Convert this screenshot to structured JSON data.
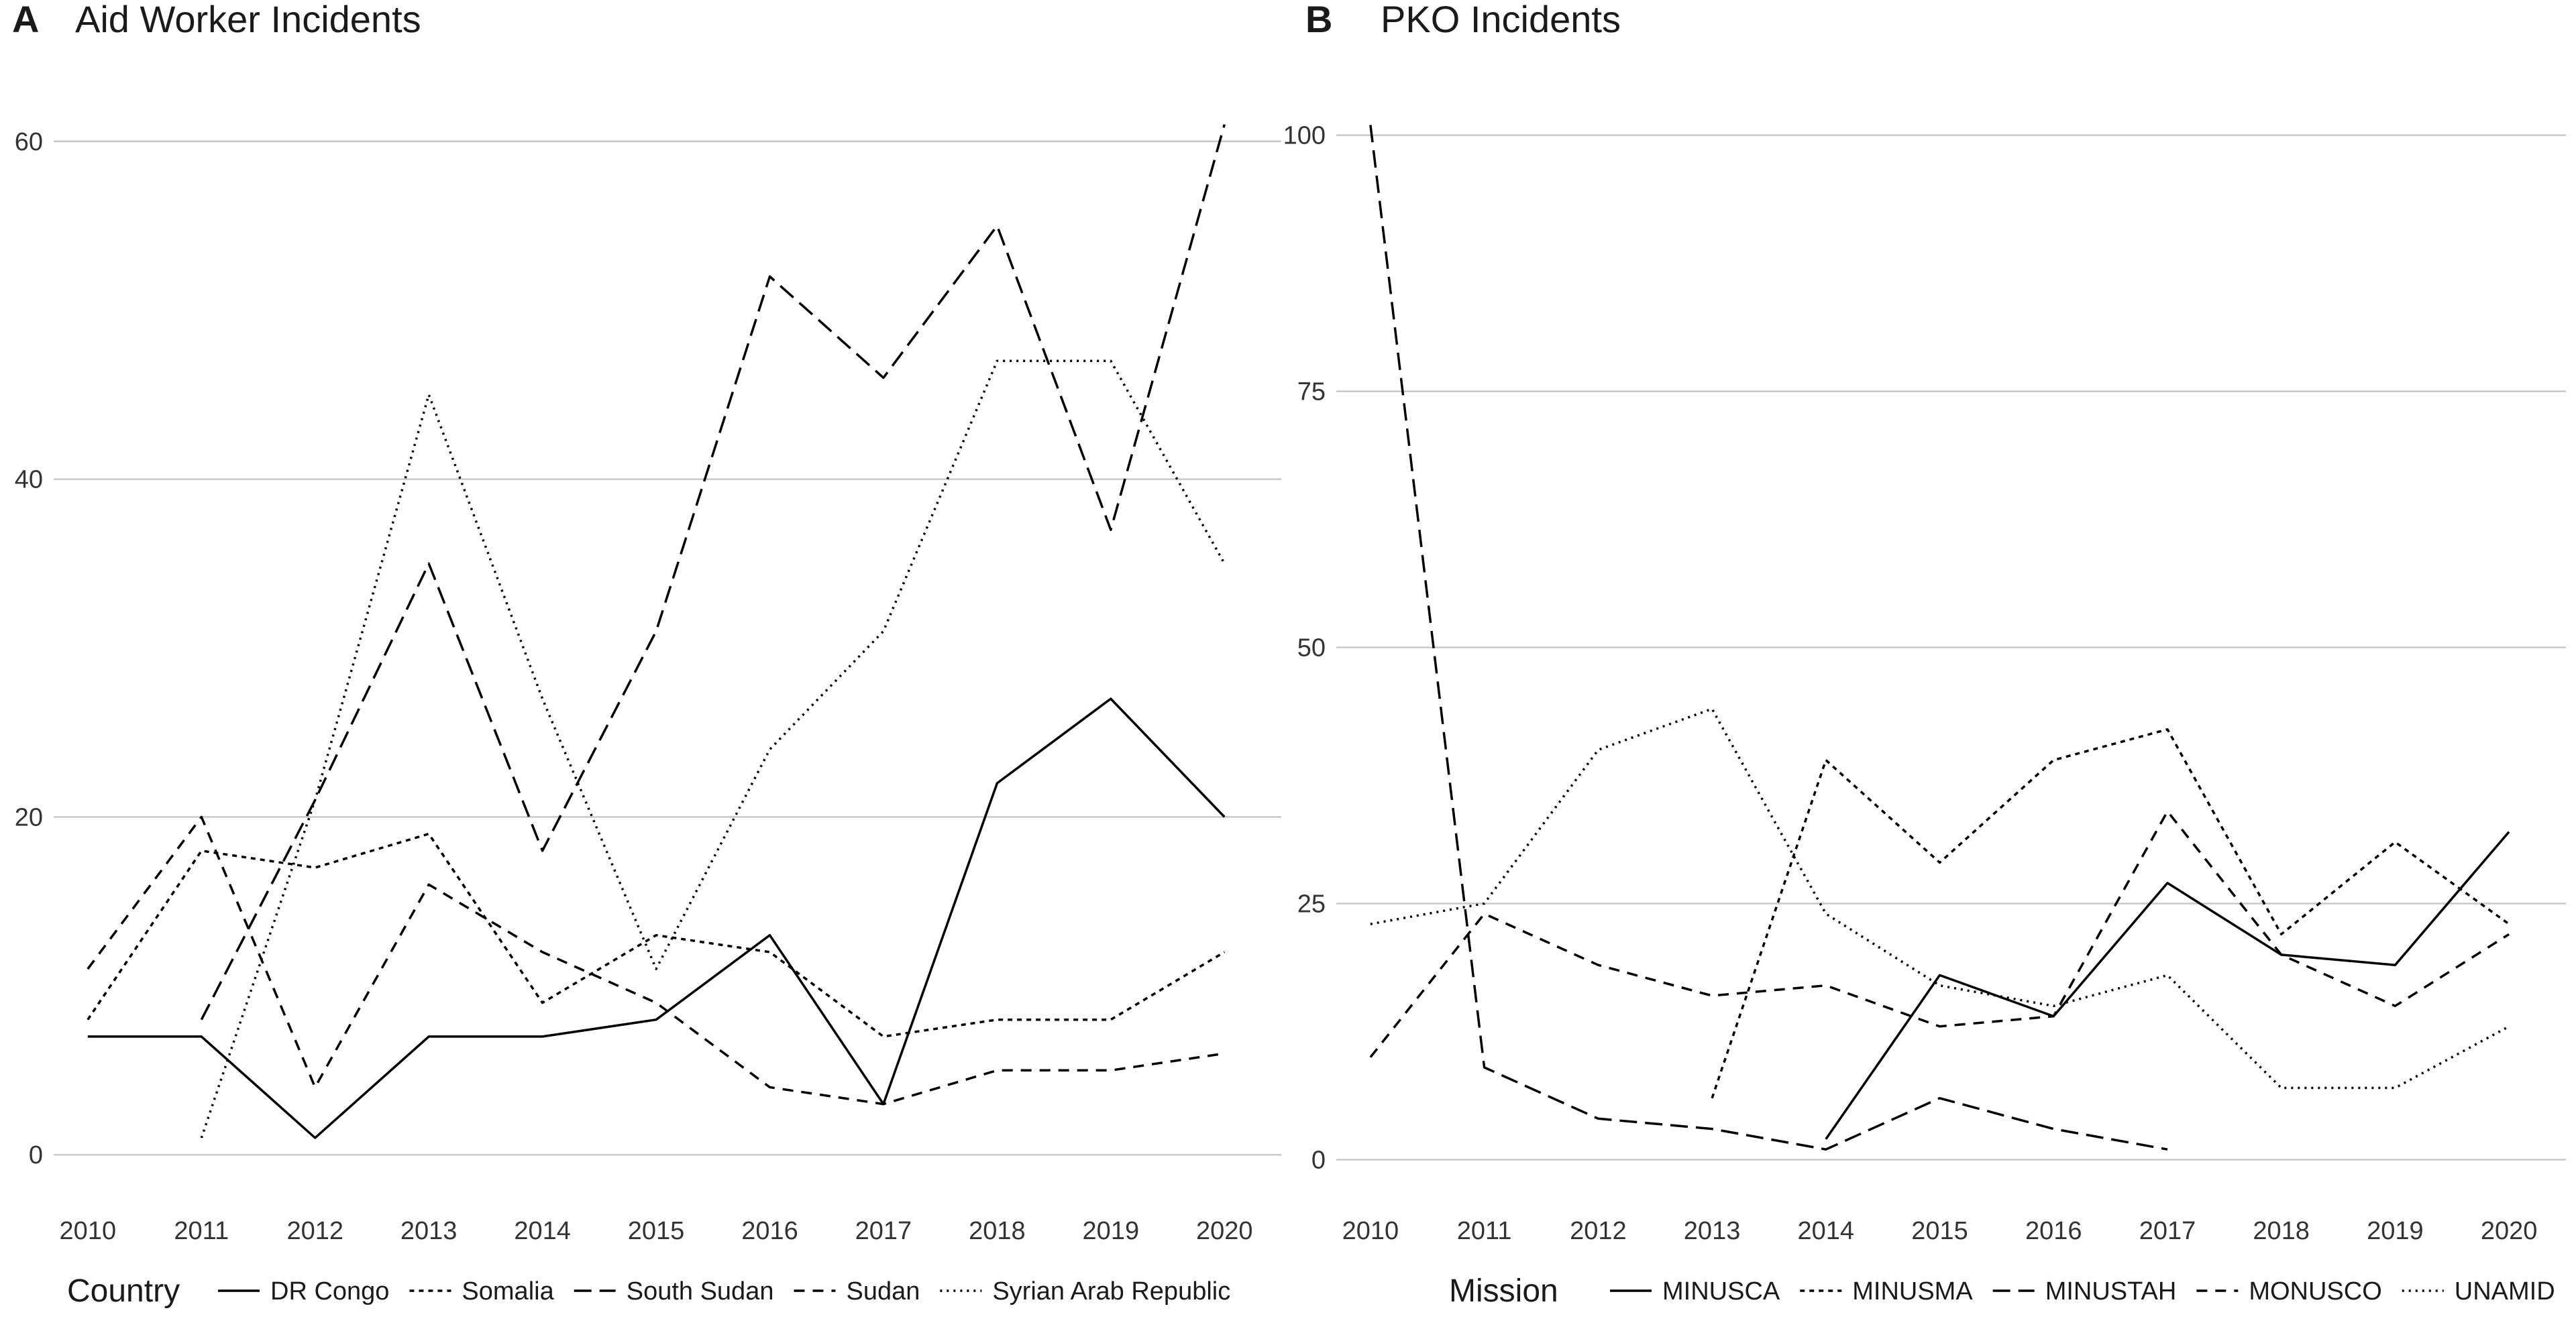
{
  "chart_data": [
    {
      "type": "line",
      "panel_label": "A",
      "title": "Aid Worker Incidents",
      "xlabel": "",
      "ylabel": "",
      "x": [
        2010,
        2011,
        2012,
        2013,
        2014,
        2015,
        2016,
        2017,
        2018,
        2019,
        2020
      ],
      "x_ticks": [
        "2010",
        "2011",
        "2012",
        "2013",
        "2014",
        "2015",
        "2016",
        "2017",
        "2018",
        "2019",
        "2020"
      ],
      "xlim": [
        2009.7,
        2020.5
      ],
      "ylim": [
        -1.5,
        64
      ],
      "y_ticks": [
        0,
        20,
        40,
        60
      ],
      "grid": "horizontal",
      "legend_title": "Country",
      "legend_position": "bottom",
      "series": [
        {
          "name": "DR Congo",
          "dash": "solid",
          "values": [
            7,
            7,
            1,
            7,
            7,
            8,
            13,
            3,
            22,
            27,
            20
          ]
        },
        {
          "name": "Somalia",
          "dash": "dotted-dash",
          "values": [
            8,
            18,
            17,
            19,
            9,
            13,
            12,
            7,
            8,
            8,
            12
          ]
        },
        {
          "name": "South Sudan",
          "dash": "long-dash",
          "values": [
            null,
            8,
            21,
            35,
            18,
            31,
            52,
            46,
            55,
            37,
            61
          ]
        },
        {
          "name": "Sudan",
          "dash": "medium-dash",
          "values": [
            11,
            20,
            4,
            16,
            12,
            9,
            4,
            3,
            5,
            5,
            6
          ]
        },
        {
          "name": "Syrian Arab Republic",
          "dash": "dotted",
          "values": [
            null,
            1,
            21,
            45,
            27,
            11,
            24,
            31,
            47,
            47,
            35
          ]
        }
      ]
    },
    {
      "type": "line",
      "panel_label": "B",
      "title": "PKO Incidents",
      "xlabel": "",
      "ylabel": "",
      "x": [
        2010,
        2011,
        2012,
        2013,
        2014,
        2015,
        2016,
        2017,
        2018,
        2019,
        2020
      ],
      "x_ticks": [
        "2010",
        "2011",
        "2012",
        "2013",
        "2014",
        "2015",
        "2016",
        "2017",
        "2018",
        "2019",
        "2020"
      ],
      "xlim": [
        2009.7,
        2020.5
      ],
      "ylim": [
        -2,
        106
      ],
      "y_ticks": [
        0,
        25,
        50,
        75,
        100
      ],
      "grid": "horizontal",
      "legend_title": "Mission",
      "legend_position": "bottom",
      "series": [
        {
          "name": "MINUSCA",
          "dash": "solid",
          "values": [
            null,
            null,
            null,
            null,
            2,
            18,
            14,
            27,
            20,
            19,
            32
          ]
        },
        {
          "name": "MINUSMA",
          "dash": "dotted-dash",
          "values": [
            null,
            null,
            null,
            6,
            39,
            29,
            39,
            42,
            22,
            31,
            23
          ]
        },
        {
          "name": "MINUSTAH",
          "dash": "long-dash",
          "values": [
            101,
            9,
            4,
            3,
            1,
            6,
            3,
            1,
            null,
            null,
            null
          ]
        },
        {
          "name": "MONUSCO",
          "dash": "medium-dash",
          "values": [
            10,
            24,
            19,
            16,
            17,
            13,
            14,
            34,
            20,
            15,
            22
          ]
        },
        {
          "name": "UNAMID",
          "dash": "dotted",
          "values": [
            23,
            25,
            40,
            44,
            24,
            17,
            15,
            18,
            7,
            7,
            13
          ]
        }
      ]
    }
  ]
}
